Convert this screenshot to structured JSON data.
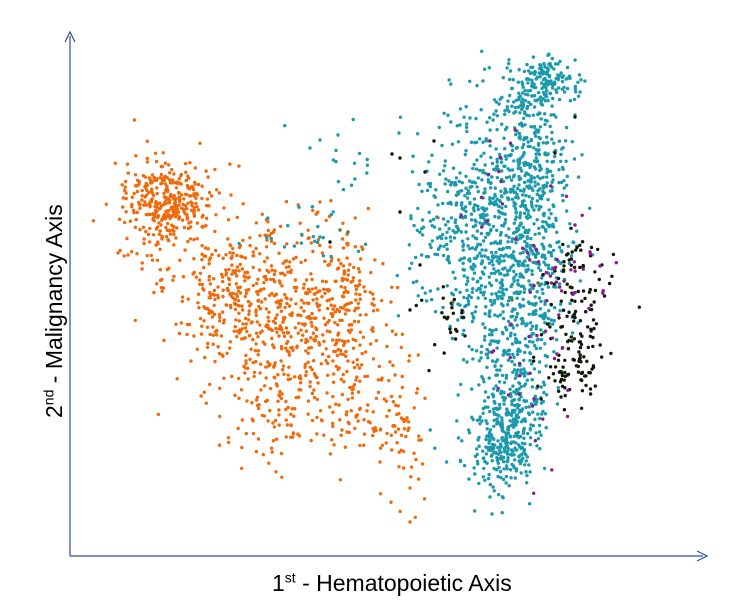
{
  "chart_data": {
    "type": "scatter",
    "title": "",
    "xlabel": {
      "ordinal": "1",
      "suffix": "st",
      "text": " - Hematopoietic Axis"
    },
    "ylabel": {
      "ordinal": "2",
      "suffix": "nd",
      "text": " - Malignancy Axis"
    },
    "axes": {
      "x_arrow": true,
      "y_arrow": true,
      "ticks": false,
      "grid": false,
      "legend": "none"
    },
    "colors": {
      "axis": "#2a4f9e",
      "orange": "#f06a0c",
      "teal": "#1a9aac",
      "dark": "#0f1a08",
      "magenta": "#8c1b8c",
      "olive": "#5a7a3a"
    },
    "series": [
      {
        "color": "#f06a0c",
        "clusters": [
          {
            "cx": 170,
            "cy": 200,
            "sx": 22,
            "sy": 18,
            "n": 260
          },
          {
            "cx": 155,
            "cy": 215,
            "sx": 20,
            "sy": 28,
            "n": 90
          },
          {
            "cx": 235,
            "cy": 290,
            "sx": 35,
            "sy": 30,
            "n": 260
          },
          {
            "cx": 295,
            "cy": 330,
            "sx": 45,
            "sy": 45,
            "n": 340
          },
          {
            "cx": 340,
            "cy": 295,
            "sx": 20,
            "sy": 30,
            "n": 110
          },
          {
            "cx": 290,
            "cy": 410,
            "sx": 35,
            "sy": 28,
            "n": 110
          },
          {
            "cx": 360,
            "cy": 390,
            "sx": 18,
            "sy": 40,
            "n": 70
          },
          {
            "cx": 405,
            "cy": 430,
            "sx": 12,
            "sy": 30,
            "n": 55
          },
          {
            "cx": 260,
            "cy": 230,
            "sx": 60,
            "sy": 30,
            "n": 45
          }
        ],
        "outliers": [
          [
            410,
            522
          ],
          [
            410,
            488
          ],
          [
            128,
            255
          ],
          [
            118,
            253
          ],
          [
            380,
            462
          ],
          [
            320,
            202
          ]
        ]
      },
      {
        "color": "#1a9aac",
        "clusters": [
          {
            "cx": 547,
            "cy": 82,
            "sx": 15,
            "sy": 12,
            "n": 140
          },
          {
            "cx": 518,
            "cy": 100,
            "sx": 10,
            "sy": 12,
            "n": 45
          },
          {
            "cx": 500,
            "cy": 200,
            "sx": 30,
            "sy": 55,
            "n": 420
          },
          {
            "cx": 535,
            "cy": 160,
            "sx": 15,
            "sy": 30,
            "n": 160
          },
          {
            "cx": 510,
            "cy": 300,
            "sx": 25,
            "sy": 45,
            "n": 320
          },
          {
            "cx": 462,
            "cy": 240,
            "sx": 22,
            "sy": 40,
            "n": 160
          },
          {
            "cx": 515,
            "cy": 395,
            "sx": 18,
            "sy": 40,
            "n": 230
          },
          {
            "cx": 508,
            "cy": 440,
            "sx": 14,
            "sy": 22,
            "n": 160
          },
          {
            "cx": 485,
            "cy": 455,
            "sx": 20,
            "sy": 22,
            "n": 60
          },
          {
            "cx": 545,
            "cy": 260,
            "sx": 14,
            "sy": 30,
            "n": 90
          },
          {
            "cx": 300,
            "cy": 235,
            "sx": 25,
            "sy": 12,
            "n": 20
          },
          {
            "cx": 345,
            "cy": 175,
            "sx": 25,
            "sy": 25,
            "n": 18
          },
          {
            "cx": 420,
            "cy": 230,
            "sx": 10,
            "sy": 40,
            "n": 25
          }
        ],
        "outliers": [
          [
            320,
            140
          ],
          [
            338,
            135
          ],
          [
            399,
            133
          ],
          [
            310,
            148
          ],
          [
            490,
            497
          ],
          [
            492,
            514
          ],
          [
            575,
            115
          ],
          [
            470,
            118
          ],
          [
            460,
            125
          ]
        ]
      },
      {
        "color": "#0f1a08",
        "clusters": [
          {
            "cx": 578,
            "cy": 265,
            "sx": 15,
            "sy": 22,
            "n": 45
          },
          {
            "cx": 575,
            "cy": 330,
            "sx": 15,
            "sy": 25,
            "n": 70
          },
          {
            "cx": 575,
            "cy": 375,
            "sx": 15,
            "sy": 15,
            "n": 50
          },
          {
            "cx": 445,
            "cy": 320,
            "sx": 15,
            "sy": 25,
            "n": 25
          }
        ],
        "outliers": [
          [
            392,
            154
          ],
          [
            400,
            158
          ],
          [
            434,
            141
          ],
          [
            555,
            153
          ],
          [
            575,
            117
          ],
          [
            425,
            172
          ],
          [
            400,
            212
          ],
          [
            330,
            242
          ],
          [
            410,
            310
          ],
          [
            420,
            265
          ]
        ]
      },
      {
        "color": "#8c1b8c",
        "clusters": [
          {
            "cx": 560,
            "cy": 270,
            "sx": 22,
            "sy": 30,
            "n": 35
          },
          {
            "cx": 530,
            "cy": 370,
            "sx": 20,
            "sy": 45,
            "n": 25
          },
          {
            "cx": 495,
            "cy": 180,
            "sx": 15,
            "sy": 30,
            "n": 12
          }
        ],
        "outliers": [
          [
            590,
            252
          ],
          [
            600,
            266
          ],
          [
            575,
            225
          ]
        ]
      },
      {
        "color": "#5a7a3a",
        "clusters": [],
        "outliers": [
          [
            340,
            230
          ],
          [
            348,
            232
          ],
          [
            453,
            302
          ],
          [
            512,
            300
          ],
          [
            538,
            283
          ]
        ]
      }
    ]
  }
}
